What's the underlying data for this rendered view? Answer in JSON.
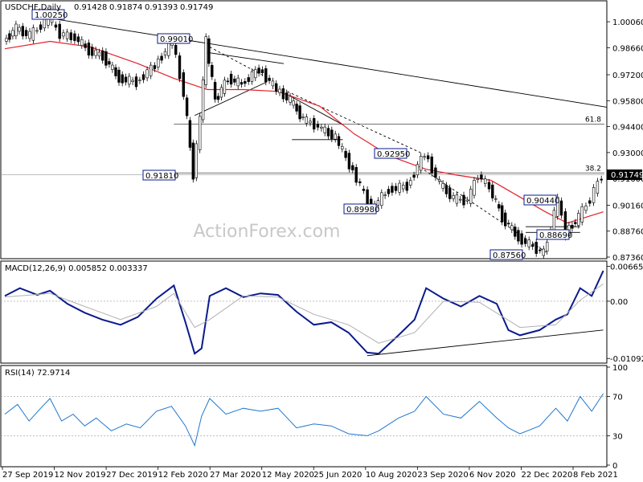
{
  "chart_data": [
    {
      "type": "candlestick",
      "title": "USDCHF,Daily",
      "ohlc": {
        "open": "0.91428",
        "high": "0.91874",
        "low": "0.91393",
        "close": "0.91749"
      },
      "last_price": "0.91749",
      "watermark": "ActionForex.com",
      "ylim": [
        0.8736,
        1.0106
      ],
      "y_ticks": [
        "1.00060",
        "0.98660",
        "0.97200",
        "0.95800",
        "0.94400",
        "0.93000",
        "0.91600",
        "0.90160",
        "0.88760",
        "0.87360"
      ],
      "x_ticks": [
        "27 Sep 2019",
        "12 Nov 2019",
        "27 Dec 2019",
        "12 Feb 2020",
        "27 Mar 2020",
        "12 May 2020",
        "25 Jun 2020",
        "10 Aug 2020",
        "23 Sep 2020",
        "6 Nov 2020",
        "22 Dec 2020",
        "8 Feb 2021"
      ],
      "fib_levels": [
        {
          "label": "61.8",
          "value": 0.9454
        },
        {
          "label": "38.2",
          "value": 0.919
        }
      ],
      "annotations": [
        {
          "text": "1.00250",
          "value": 1.0025,
          "date": "2019-11-05"
        },
        {
          "text": "0.99010",
          "value": 0.9901,
          "date": "2020-02-20"
        },
        {
          "text": "0.91810",
          "value": 0.9181,
          "date": "2020-03-09"
        },
        {
          "text": "0.92950",
          "value": 0.9295,
          "date": "2020-09-25"
        },
        {
          "text": "0.89980",
          "value": 0.8998,
          "date": "2020-08-10"
        },
        {
          "text": "0.90440",
          "value": 0.9044,
          "date": "2021-01-18"
        },
        {
          "text": "0.87560",
          "value": 0.8756,
          "date": "2021-01-06"
        },
        {
          "text": "0.88690",
          "value": 0.8869,
          "date": "2021-01-25"
        }
      ],
      "moving_average_color": "#e4202a",
      "price_points": [
        [
          "2019-09-27",
          0.99
        ],
        [
          "2019-10-08",
          0.997
        ],
        [
          "2019-10-20",
          0.993
        ],
        [
          "2019-11-05",
          1.0025
        ],
        [
          "2019-11-15",
          0.994
        ],
        [
          "2019-11-28",
          0.992
        ],
        [
          "2019-12-10",
          0.985
        ],
        [
          "2019-12-22",
          0.982
        ],
        [
          "2020-01-05",
          0.97
        ],
        [
          "2020-01-20",
          0.968
        ],
        [
          "2020-02-05",
          0.977
        ],
        [
          "2020-02-20",
          0.9901
        ],
        [
          "2020-03-01",
          0.962
        ],
        [
          "2020-03-09",
          0.9181
        ],
        [
          "2020-03-15",
          0.948
        ],
        [
          "2020-03-20",
          0.9901
        ],
        [
          "2020-03-28",
          0.958
        ],
        [
          "2020-04-08",
          0.97
        ],
        [
          "2020-04-20",
          0.967
        ],
        [
          "2020-05-05",
          0.975
        ],
        [
          "2020-05-20",
          0.964
        ],
        [
          "2020-06-01",
          0.958
        ],
        [
          "2020-06-12",
          0.948
        ],
        [
          "2020-06-25",
          0.944
        ],
        [
          "2020-07-10",
          0.938
        ],
        [
          "2020-07-25",
          0.92
        ],
        [
          "2020-08-10",
          0.8998
        ],
        [
          "2020-08-25",
          0.91
        ],
        [
          "2020-09-10",
          0.912
        ],
        [
          "2020-09-25",
          0.9295
        ],
        [
          "2020-10-08",
          0.913
        ],
        [
          "2020-10-20",
          0.905
        ],
        [
          "2020-11-01",
          0.904
        ],
        [
          "2020-11-10",
          0.918
        ],
        [
          "2020-11-20",
          0.911
        ],
        [
          "2020-12-01",
          0.895
        ],
        [
          "2020-12-15",
          0.884
        ],
        [
          "2021-01-06",
          0.8756
        ],
        [
          "2021-01-18",
          0.9044
        ],
        [
          "2021-01-25",
          0.8869
        ],
        [
          "2021-02-05",
          0.895
        ],
        [
          "2021-02-15",
          0.905
        ],
        [
          "2021-02-25",
          0.9175
        ]
      ],
      "ma_points": [
        [
          "2019-09-27",
          0.986
        ],
        [
          "2019-11-05",
          0.99
        ],
        [
          "2019-12-10",
          0.987
        ],
        [
          "2020-01-20",
          0.978
        ],
        [
          "2020-02-20",
          0.97
        ],
        [
          "2020-03-20",
          0.964
        ],
        [
          "2020-04-20",
          0.964
        ],
        [
          "2020-05-20",
          0.963
        ],
        [
          "2020-06-25",
          0.955
        ],
        [
          "2020-07-25",
          0.94
        ],
        [
          "2020-08-25",
          0.928
        ],
        [
          "2020-09-25",
          0.921
        ],
        [
          "2020-10-20",
          0.918
        ],
        [
          "2020-11-20",
          0.915
        ],
        [
          "2020-12-15",
          0.906
        ],
        [
          "2021-01-06",
          0.898
        ],
        [
          "2021-01-25",
          0.892
        ],
        [
          "2021-02-25",
          0.898
        ]
      ]
    },
    {
      "type": "line",
      "title": "MACD(12,26,9) 0.005852 0.003337",
      "ylim": [
        -0.0115,
        0.0072
      ],
      "y_ticks": [
        "0.006651",
        "0.00",
        "-0.010922"
      ],
      "series": [
        {
          "name": "MACD",
          "color": "#0a1a8c",
          "points": [
            [
              "2019-09-27",
              0.001
            ],
            [
              "2019-10-10",
              0.0025
            ],
            [
              "2019-10-25",
              0.0012
            ],
            [
              "2019-11-05",
              0.002
            ],
            [
              "2019-11-20",
              -0.0005
            ],
            [
              "2019-12-05",
              -0.0022
            ],
            [
              "2019-12-20",
              -0.0035
            ],
            [
              "2020-01-05",
              -0.0045
            ],
            [
              "2020-01-20",
              -0.003
            ],
            [
              "2020-02-05",
              0.0005
            ],
            [
              "2020-02-20",
              0.003
            ],
            [
              "2020-03-01",
              -0.004
            ],
            [
              "2020-03-09",
              -0.01
            ],
            [
              "2020-03-15",
              -0.009
            ],
            [
              "2020-03-22",
              0.001
            ],
            [
              "2020-04-05",
              0.0025
            ],
            [
              "2020-04-20",
              0.0008
            ],
            [
              "2020-05-05",
              0.0015
            ],
            [
              "2020-05-20",
              0.0012
            ],
            [
              "2020-06-05",
              -0.002
            ],
            [
              "2020-06-20",
              -0.0045
            ],
            [
              "2020-07-05",
              -0.004
            ],
            [
              "2020-07-20",
              -0.006
            ],
            [
              "2020-08-05",
              -0.0098
            ],
            [
              "2020-08-15",
              -0.01
            ],
            [
              "2020-09-01",
              -0.0065
            ],
            [
              "2020-09-15",
              -0.0035
            ],
            [
              "2020-09-25",
              0.0025
            ],
            [
              "2020-10-10",
              0.0005
            ],
            [
              "2020-10-25",
              -0.001
            ],
            [
              "2020-11-10",
              0.001
            ],
            [
              "2020-11-25",
              -0.0005
            ],
            [
              "2020-12-05",
              -0.0055
            ],
            [
              "2020-12-15",
              -0.0065
            ],
            [
              "2021-01-01",
              -0.0055
            ],
            [
              "2021-01-15",
              -0.0035
            ],
            [
              "2021-01-25",
              -0.0025
            ],
            [
              "2021-02-05",
              0.0025
            ],
            [
              "2021-02-15",
              0.001
            ],
            [
              "2021-02-25",
              0.0058
            ]
          ]
        },
        {
          "name": "Signal",
          "color": "#b0b0b0",
          "points": [
            [
              "2019-09-27",
              0.0008
            ],
            [
              "2019-11-05",
              0.0015
            ],
            [
              "2019-12-05",
              -0.001
            ],
            [
              "2020-01-05",
              -0.0035
            ],
            [
              "2020-02-05",
              -0.001
            ],
            [
              "2020-02-20",
              0.0015
            ],
            [
              "2020-03-09",
              -0.005
            ],
            [
              "2020-03-22",
              -0.0035
            ],
            [
              "2020-04-20",
              0.001
            ],
            [
              "2020-05-20",
              0.0008
            ],
            [
              "2020-06-20",
              -0.0025
            ],
            [
              "2020-07-20",
              -0.0045
            ],
            [
              "2020-08-15",
              -0.008
            ],
            [
              "2020-09-15",
              -0.006
            ],
            [
              "2020-10-10",
              0.0
            ],
            [
              "2020-11-10",
              -0.0002
            ],
            [
              "2020-12-15",
              -0.005
            ],
            [
              "2021-01-15",
              -0.0045
            ],
            [
              "2021-02-05",
              0.0002
            ],
            [
              "2021-02-25",
              0.0033
            ]
          ]
        }
      ],
      "trendline": [
        [
          "2020-08-05",
          -0.0104
        ],
        [
          "2021-02-25",
          -0.0055
        ]
      ]
    },
    {
      "type": "line",
      "title": "RSI(14) 72.9714",
      "ylim": [
        0,
        100
      ],
      "y_ticks": [
        "100",
        "70",
        "30",
        "0"
      ],
      "levels": [
        70,
        30
      ],
      "series": [
        {
          "name": "RSI",
          "color": "#1f77d0",
          "points": [
            [
              "2019-09-27",
              52
            ],
            [
              "2019-10-08",
              62
            ],
            [
              "2019-10-18",
              45
            ],
            [
              "2019-10-28",
              58
            ],
            [
              "2019-11-05",
              68
            ],
            [
              "2019-11-15",
              45
            ],
            [
              "2019-11-25",
              52
            ],
            [
              "2019-12-05",
              40
            ],
            [
              "2019-12-15",
              48
            ],
            [
              "2019-12-28",
              35
            ],
            [
              "2020-01-10",
              42
            ],
            [
              "2020-01-22",
              38
            ],
            [
              "2020-02-05",
              55
            ],
            [
              "2020-02-18",
              60
            ],
            [
              "2020-03-01",
              40
            ],
            [
              "2020-03-09",
              20
            ],
            [
              "2020-03-15",
              50
            ],
            [
              "2020-03-22",
              68
            ],
            [
              "2020-04-05",
              52
            ],
            [
              "2020-04-20",
              58
            ],
            [
              "2020-05-05",
              55
            ],
            [
              "2020-05-20",
              58
            ],
            [
              "2020-06-05",
              38
            ],
            [
              "2020-06-20",
              42
            ],
            [
              "2020-07-05",
              40
            ],
            [
              "2020-07-20",
              32
            ],
            [
              "2020-08-05",
              30
            ],
            [
              "2020-08-15",
              35
            ],
            [
              "2020-09-01",
              48
            ],
            [
              "2020-09-15",
              55
            ],
            [
              "2020-09-25",
              70
            ],
            [
              "2020-10-10",
              52
            ],
            [
              "2020-10-25",
              48
            ],
            [
              "2020-11-10",
              65
            ],
            [
              "2020-11-25",
              48
            ],
            [
              "2020-12-05",
              38
            ],
            [
              "2020-12-15",
              32
            ],
            [
              "2021-01-01",
              40
            ],
            [
              "2021-01-15",
              58
            ],
            [
              "2021-01-25",
              45
            ],
            [
              "2021-02-05",
              70
            ],
            [
              "2021-02-15",
              55
            ],
            [
              "2021-02-25",
              73
            ]
          ]
        }
      ]
    }
  ]
}
